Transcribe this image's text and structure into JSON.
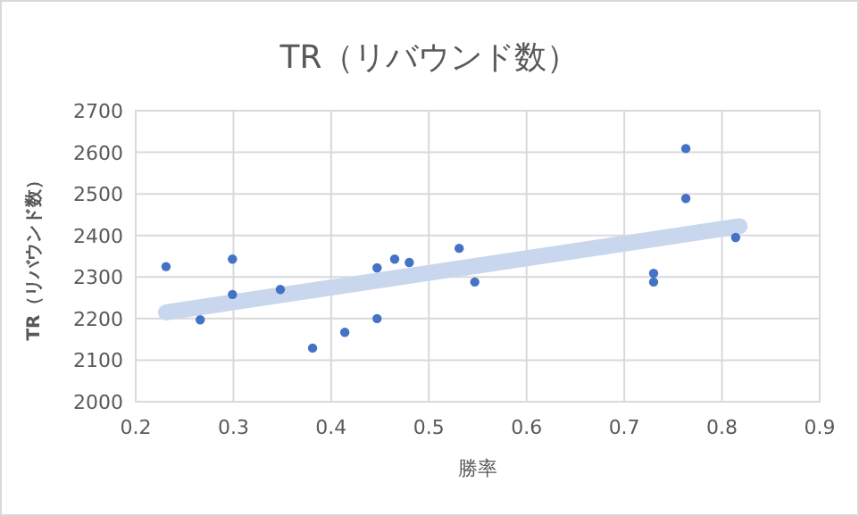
{
  "chart_data": {
    "type": "scatter",
    "title": "TR（リバウンド数）",
    "xlabel": "勝率",
    "ylabel": "TR（リバウンド数）",
    "xlim": [
      0.2,
      0.9
    ],
    "xticks": [
      0.2,
      0.3,
      0.4,
      0.5,
      0.6,
      0.7,
      0.8,
      0.9
    ],
    "ylim": [
      2000,
      2700
    ],
    "yticks": [
      2000,
      2100,
      2200,
      2300,
      2400,
      2500,
      2600,
      2700
    ],
    "grid": true,
    "marker": "circle",
    "series": [
      {
        "type": "line",
        "marker": "none",
        "color": "#c9d7ee",
        "x": [
          0.231,
          0.818
        ],
        "values": [
          2215,
          2422
        ]
      },
      {
        "color": "#4472c4",
        "x": [
          0.231,
          0.266,
          0.299,
          0.299,
          0.348,
          0.381,
          0.414,
          0.447,
          0.447,
          0.465,
          0.48,
          0.531,
          0.547,
          0.73,
          0.73,
          0.763,
          0.763,
          0.814
        ],
        "values": [
          2325,
          2197,
          2343,
          2258,
          2270,
          2129,
          2167,
          2200,
          2322,
          2343,
          2335,
          2369,
          2288,
          2309,
          2288,
          2609,
          2489,
          2395
        ]
      }
    ]
  }
}
